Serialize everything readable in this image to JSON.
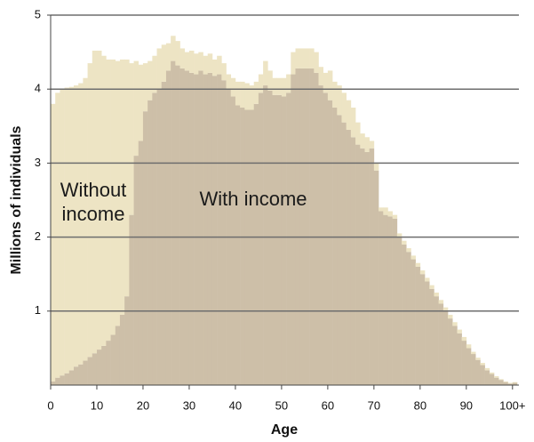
{
  "chart_data": {
    "type": "bar",
    "stacked": true,
    "x_label": "Age",
    "y_label": "Millions of individuals",
    "x": [
      0,
      1,
      2,
      3,
      4,
      5,
      6,
      7,
      8,
      9,
      10,
      11,
      12,
      13,
      14,
      15,
      16,
      17,
      18,
      19,
      20,
      21,
      22,
      23,
      24,
      25,
      26,
      27,
      28,
      29,
      30,
      31,
      32,
      33,
      34,
      35,
      36,
      37,
      38,
      39,
      40,
      41,
      42,
      43,
      44,
      45,
      46,
      47,
      48,
      49,
      50,
      51,
      52,
      53,
      54,
      55,
      56,
      57,
      58,
      59,
      60,
      61,
      62,
      63,
      64,
      65,
      66,
      67,
      68,
      69,
      70,
      71,
      72,
      73,
      74,
      75,
      76,
      77,
      78,
      79,
      80,
      81,
      82,
      83,
      84,
      85,
      86,
      87,
      88,
      89,
      90,
      91,
      92,
      93,
      94,
      95,
      96,
      97,
      98,
      99,
      100
    ],
    "series": [
      {
        "name": "With income",
        "color": "#cdbfa8",
        "values": [
          0.05,
          0.1,
          0.13,
          0.16,
          0.2,
          0.25,
          0.28,
          0.33,
          0.38,
          0.43,
          0.48,
          0.53,
          0.6,
          0.68,
          0.8,
          0.95,
          1.2,
          2.3,
          3.1,
          3.3,
          3.7,
          3.85,
          3.95,
          4.0,
          4.1,
          4.25,
          4.38,
          4.32,
          4.28,
          4.25,
          4.22,
          4.2,
          4.25,
          4.2,
          4.22,
          4.18,
          4.2,
          4.12,
          4.0,
          3.9,
          3.78,
          3.75,
          3.72,
          3.72,
          3.8,
          3.95,
          4.05,
          3.98,
          3.92,
          3.92,
          3.9,
          3.95,
          4.2,
          4.28,
          4.28,
          4.28,
          4.28,
          4.22,
          4.05,
          3.95,
          3.85,
          3.75,
          3.65,
          3.55,
          3.45,
          3.35,
          3.25,
          3.2,
          3.15,
          3.2,
          2.9,
          2.35,
          2.3,
          2.28,
          2.25,
          2.0,
          1.9,
          1.8,
          1.7,
          1.6,
          1.5,
          1.4,
          1.3,
          1.2,
          1.1,
          1.0,
          0.9,
          0.8,
          0.7,
          0.6,
          0.5,
          0.42,
          0.34,
          0.27,
          0.2,
          0.15,
          0.1,
          0.07,
          0.04,
          0.02,
          0.03
        ]
      },
      {
        "name": "Without income",
        "color": "#ede4c4",
        "values": [
          3.75,
          3.85,
          3.87,
          3.86,
          3.83,
          3.8,
          3.8,
          3.82,
          3.97,
          4.09,
          4.04,
          3.92,
          3.8,
          3.72,
          3.58,
          3.45,
          3.2,
          2.05,
          1.28,
          1.03,
          0.65,
          0.53,
          0.5,
          0.55,
          0.5,
          0.37,
          0.34,
          0.33,
          0.27,
          0.25,
          0.3,
          0.28,
          0.25,
          0.25,
          0.26,
          0.22,
          0.25,
          0.23,
          0.2,
          0.25,
          0.32,
          0.35,
          0.36,
          0.33,
          0.3,
          0.25,
          0.33,
          0.27,
          0.23,
          0.23,
          0.25,
          0.25,
          0.3,
          0.27,
          0.27,
          0.27,
          0.27,
          0.28,
          0.25,
          0.27,
          0.4,
          0.35,
          0.4,
          0.4,
          0.4,
          0.4,
          0.3,
          0.2,
          0.2,
          0.1,
          0.1,
          0.05,
          0.1,
          0.07,
          0.05,
          0.05,
          0.05,
          0.05,
          0.05,
          0.05,
          0.05,
          0.05,
          0.05,
          0.05,
          0.05,
          0.05,
          0.05,
          0.05,
          0.05,
          0.05,
          0.05,
          0.03,
          0.03,
          0.03,
          0.03,
          0.02,
          0.02,
          0.01,
          0.01,
          0.01,
          0.01
        ]
      }
    ],
    "xlim": [
      0,
      101
    ],
    "ylim": [
      0,
      5
    ],
    "xticks": [
      0,
      10,
      20,
      30,
      40,
      50,
      60,
      70,
      80,
      90,
      {
        "value": 100,
        "label": "100+"
      }
    ],
    "yticks": [
      1,
      2,
      3,
      4,
      5
    ],
    "grid": true,
    "grid_color": "#6e6e6e"
  }
}
